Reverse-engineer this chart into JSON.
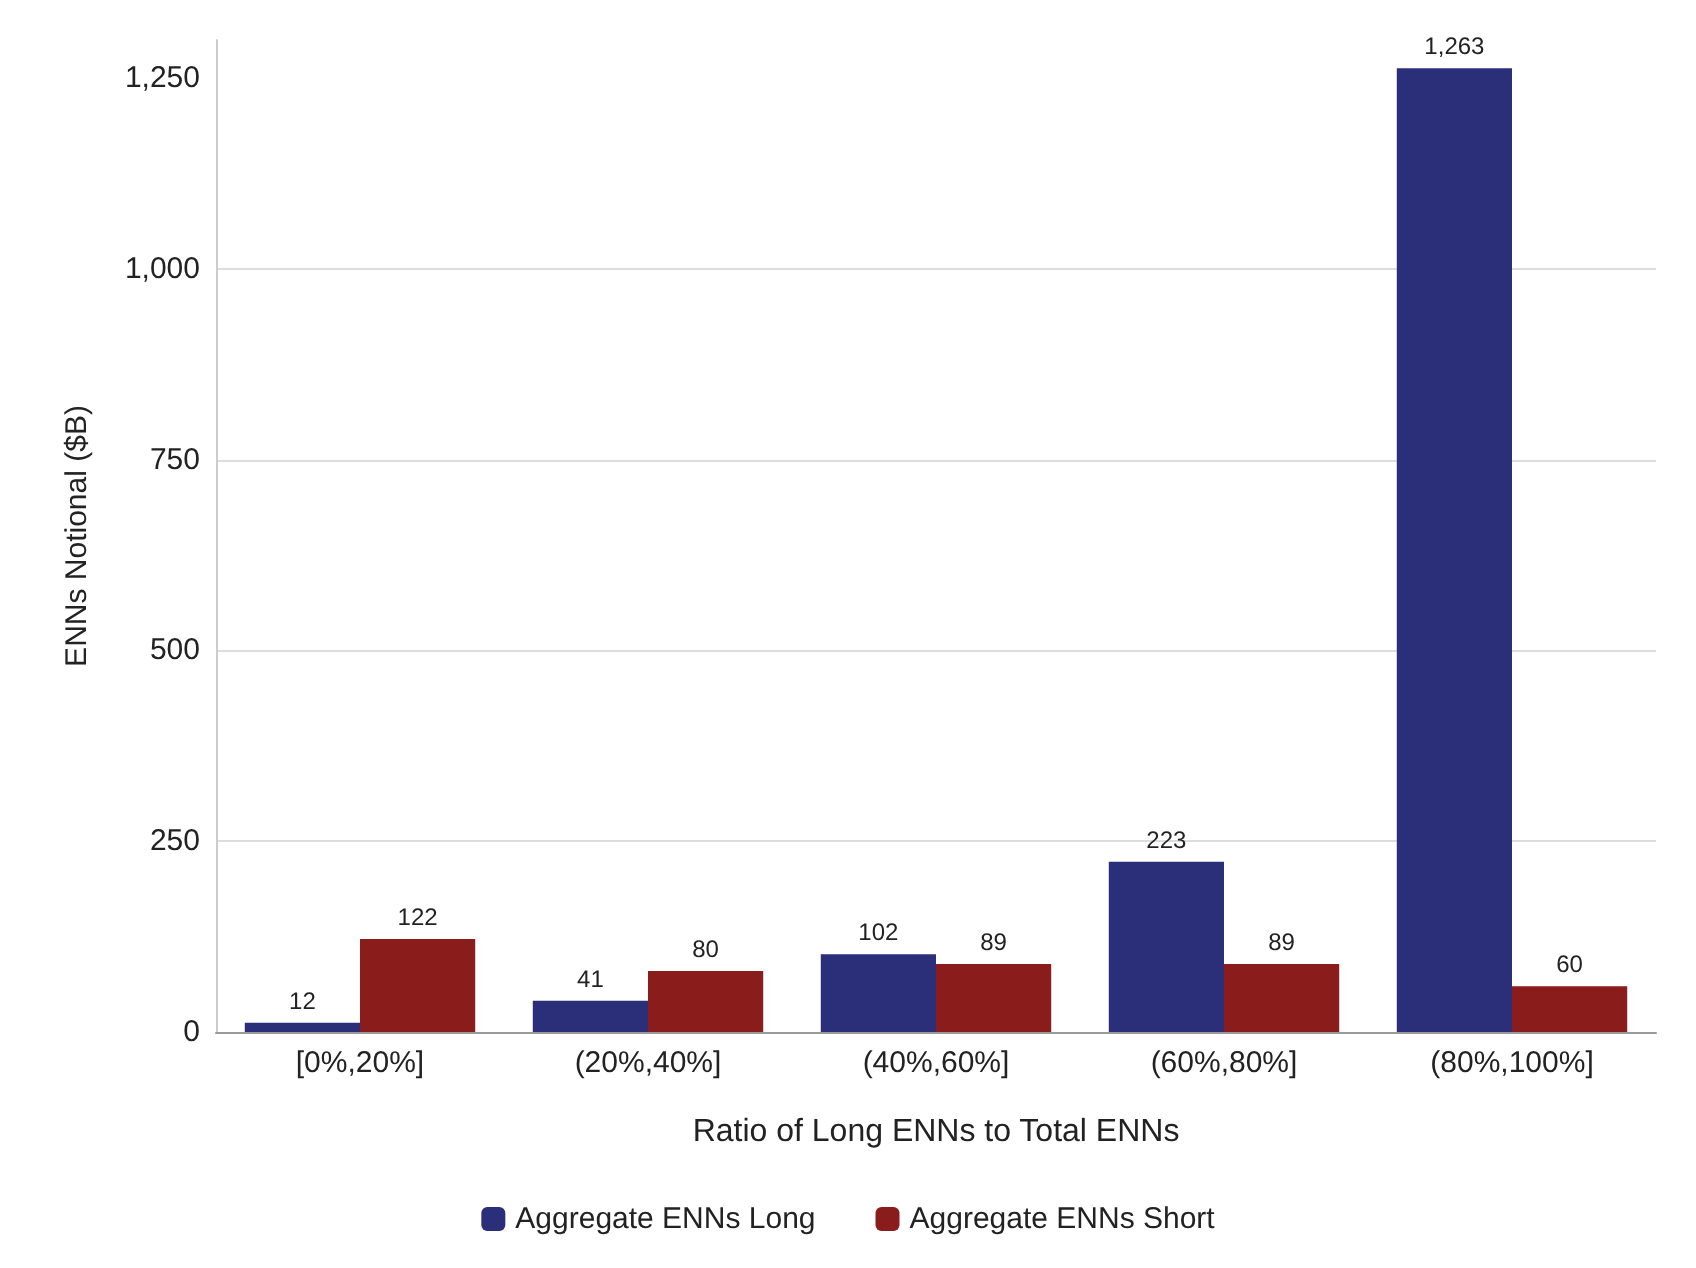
{
  "chart_data": {
    "type": "bar",
    "xlabel": "Ratio of Long ENNs to Total ENNs",
    "ylabel": "ENNs Notional ($B)",
    "categories": [
      "[0%,20%]",
      "(20%,40%]",
      "(40%,60%]",
      "(60%,80%]",
      "(80%,100%]"
    ],
    "series": [
      {
        "name": "Aggregate ENNs Long",
        "color": "#2b2f7a",
        "values": [
          12,
          41,
          102,
          223,
          1263
        ],
        "value_labels": [
          "12",
          "41",
          "102",
          "223",
          "1,263"
        ]
      },
      {
        "name": "Aggregate ENNs Short",
        "color": "#8b1c1c",
        "values": [
          122,
          80,
          89,
          89,
          60
        ],
        "value_labels": [
          "122",
          "80",
          "89",
          "89",
          "60"
        ]
      }
    ],
    "ylim": [
      0,
      1300
    ],
    "yticks": [
      0,
      250,
      500,
      750,
      {
        "value": 1000,
        "label": "1,000"
      },
      {
        "value": 1250,
        "label": "1,250"
      }
    ],
    "grid": "y",
    "legend": "bottom"
  }
}
